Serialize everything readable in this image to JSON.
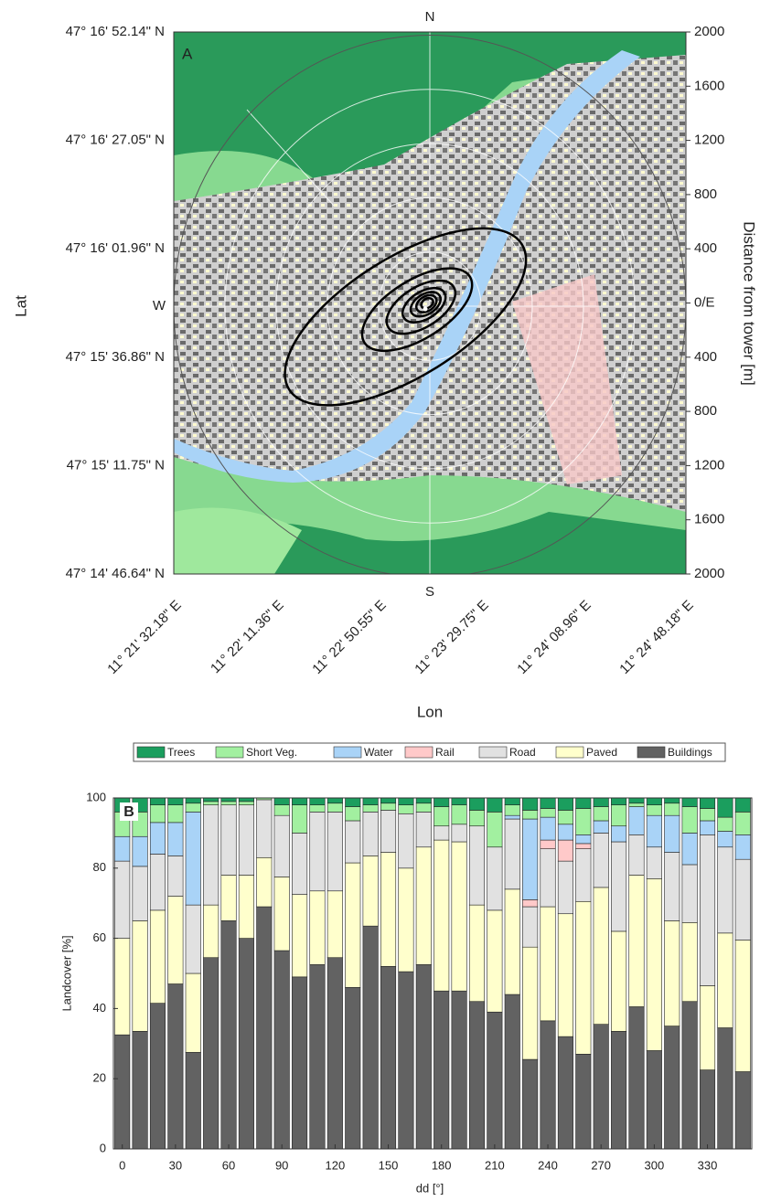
{
  "map_panel": {
    "panel_label": "A",
    "compass": {
      "north": "N",
      "south": "S",
      "west": "W"
    },
    "lat_labels": [
      "47° 16' 52.14\" N",
      "47° 16' 27.05\" N",
      "47° 16' 01.96\" N",
      "47° 15' 36.86\" N",
      "47° 15' 11.75\" N",
      "47° 14' 46.64\" N"
    ],
    "lon_labels": [
      "11° 21' 32.18\" E",
      "11° 22' 11.36\" E",
      "11° 22' 50.55\" E",
      "11° 23' 29.75\" E",
      "11° 24' 08.96\" E",
      "11° 24' 48.18\" E"
    ],
    "distance_labels": [
      "2000",
      "1600",
      "1200",
      "800",
      "400",
      "0/E",
      "400",
      "800",
      "1200",
      "1600",
      "2000"
    ],
    "x_label": "Lon",
    "y_label": "Lat",
    "y2_label": "Distance from tower [m]"
  },
  "chart_data": {
    "type": "stacked_bar",
    "panel_label": "B",
    "x": [
      0,
      10,
      20,
      30,
      40,
      50,
      60,
      70,
      80,
      90,
      100,
      110,
      120,
      130,
      140,
      150,
      160,
      170,
      180,
      190,
      200,
      210,
      220,
      230,
      240,
      250,
      260,
      270,
      280,
      290,
      300,
      310,
      320,
      330,
      340,
      350
    ],
    "xlim": [
      -5,
      355
    ],
    "xticks": [
      0,
      30,
      60,
      90,
      120,
      150,
      180,
      210,
      240,
      270,
      300,
      330
    ],
    "ylim": [
      0,
      100
    ],
    "yticks": [
      0,
      20,
      40,
      60,
      80,
      100
    ],
    "x_label": "dd [°]",
    "y_label": "Landcover [%]",
    "legend": "top",
    "series": [
      {
        "name": "Trees",
        "color": "#1b9e5e",
        "values": [
          4,
          4,
          2,
          2,
          1.5,
          1,
          1,
          1,
          0,
          2,
          2,
          2,
          1.5,
          2.5,
          2,
          1.5,
          2,
          1.5,
          2.5,
          2,
          3.5,
          4,
          2,
          3.5,
          3,
          3.5,
          3,
          2.5,
          2,
          1.5,
          2,
          1.5,
          2.5,
          3,
          5.5,
          4
        ]
      },
      {
        "name": "Short Veg.",
        "color": "#a2f0a0",
        "values": [
          7,
          7,
          5,
          5,
          2.5,
          1,
          1,
          1,
          0.5,
          3,
          8,
          2,
          2.5,
          4,
          2,
          2,
          2.5,
          2.5,
          5.5,
          5.5,
          4.5,
          10,
          3,
          2.5,
          2.5,
          4,
          7.5,
          4,
          6,
          1,
          3,
          3.5,
          7.5,
          3.5,
          4,
          6.5
        ]
      },
      {
        "name": "Water",
        "color": "#a9d3f7",
        "values": [
          7,
          8.5,
          9,
          9.5,
          26.5,
          0,
          0,
          0,
          0,
          0,
          0,
          0,
          0,
          0,
          0,
          0,
          0,
          0,
          0,
          0,
          0,
          0,
          1,
          23,
          6.5,
          4.5,
          2.5,
          3.5,
          4.5,
          8,
          9,
          10.5,
          9,
          4,
          4.5,
          7
        ]
      },
      {
        "name": "Rail",
        "color": "#ffc9c9",
        "values": [
          0,
          0,
          0,
          0,
          0,
          0,
          0,
          0,
          0,
          0,
          0,
          0,
          0,
          0,
          0,
          0,
          0,
          0,
          0,
          0,
          0,
          0,
          0,
          2,
          2.5,
          6,
          1.5,
          0,
          0,
          0,
          0,
          0,
          0,
          0,
          0,
          0
        ]
      },
      {
        "name": "Road",
        "color": "#e1e1e1",
        "values": [
          22,
          15.5,
          16,
          11.5,
          19.5,
          28.5,
          20,
          20,
          16.5,
          17.5,
          17.5,
          22.5,
          22.5,
          12,
          12.5,
          12,
          15.5,
          10,
          4,
          5,
          22.5,
          18,
          20,
          11.5,
          16.5,
          15,
          15,
          15.5,
          25.5,
          11.5,
          9,
          19.5,
          16.5,
          43,
          24.5,
          23
        ]
      },
      {
        "name": "Paved",
        "color": "#ffffcc",
        "values": [
          27.5,
          31.5,
          26.5,
          25,
          22.5,
          15,
          13,
          18,
          14,
          21,
          23.5,
          21,
          19,
          35.5,
          20,
          32.5,
          29.5,
          33.5,
          43,
          42.5,
          27.5,
          29,
          30,
          32,
          32.5,
          35,
          43.5,
          39,
          28.5,
          37.5,
          49,
          30,
          22.5,
          24,
          27,
          37.5
        ]
      },
      {
        "name": "Buildings",
        "color": "#626262",
        "values": [
          32.5,
          33.5,
          41.5,
          47,
          27.5,
          54.5,
          65,
          60,
          69,
          56.5,
          49,
          52.5,
          54.5,
          46,
          63.5,
          52,
          50.5,
          52.5,
          45,
          45,
          42,
          39,
          44,
          25.5,
          36.5,
          32,
          27,
          35.5,
          33.5,
          40.5,
          28,
          35,
          42,
          22.5,
          34.5,
          22
        ]
      }
    ]
  }
}
